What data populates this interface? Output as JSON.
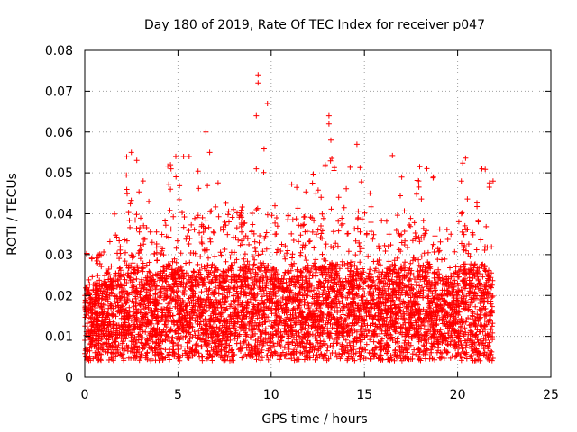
{
  "chart_data": {
    "type": "scatter",
    "title": "Day 180 of 2019, Rate Of TEC Index for receiver p047",
    "xlabel": "GPS time / hours",
    "ylabel": "ROTI / TECUs",
    "xlim": [
      0,
      25
    ],
    "ylim": [
      0,
      0.08
    ],
    "x_ticks": [
      0,
      5,
      10,
      15,
      20,
      25
    ],
    "x_tick_labels": [
      "0",
      "5",
      "10",
      "15",
      "20",
      "25"
    ],
    "y_ticks": [
      0,
      0.01,
      0.02,
      0.03,
      0.04,
      0.05,
      0.06,
      0.07,
      0.08
    ],
    "y_tick_labels": [
      "0",
      "0.01",
      "0.02",
      "0.03",
      "0.04",
      "0.05",
      "0.06",
      "0.07",
      "0.08"
    ],
    "grid": true,
    "marker": "+",
    "color": "#ff0000",
    "series": [
      {
        "name": "ROTI",
        "data_range_x": [
          0,
          21.9
        ],
        "typical_band": [
          0.005,
          0.025
        ],
        "notable_points": [
          {
            "x": 9.3,
            "y": 0.074
          },
          {
            "x": 9.3,
            "y": 0.072
          },
          {
            "x": 9.8,
            "y": 0.067
          },
          {
            "x": 9.2,
            "y": 0.064
          },
          {
            "x": 13.1,
            "y": 0.064
          },
          {
            "x": 13.1,
            "y": 0.062
          },
          {
            "x": 6.5,
            "y": 0.06
          },
          {
            "x": 13.2,
            "y": 0.058
          },
          {
            "x": 14.6,
            "y": 0.057
          },
          {
            "x": 6.7,
            "y": 0.055
          },
          {
            "x": 2.5,
            "y": 0.055
          },
          {
            "x": 5.3,
            "y": 0.054
          },
          {
            "x": 5.6,
            "y": 0.054
          },
          {
            "x": 4.6,
            "y": 0.052
          },
          {
            "x": 21.3,
            "y": 0.051
          },
          {
            "x": 9.2,
            "y": 0.051
          },
          {
            "x": 21.9,
            "y": 0.048
          },
          {
            "x": 20.2,
            "y": 0.048
          },
          {
            "x": 17.0,
            "y": 0.049
          },
          {
            "x": 18.7,
            "y": 0.049
          },
          {
            "x": 4.6,
            "y": 0.046
          },
          {
            "x": 12.4,
            "y": 0.045
          },
          {
            "x": 15.3,
            "y": 0.045
          }
        ]
      }
    ]
  }
}
